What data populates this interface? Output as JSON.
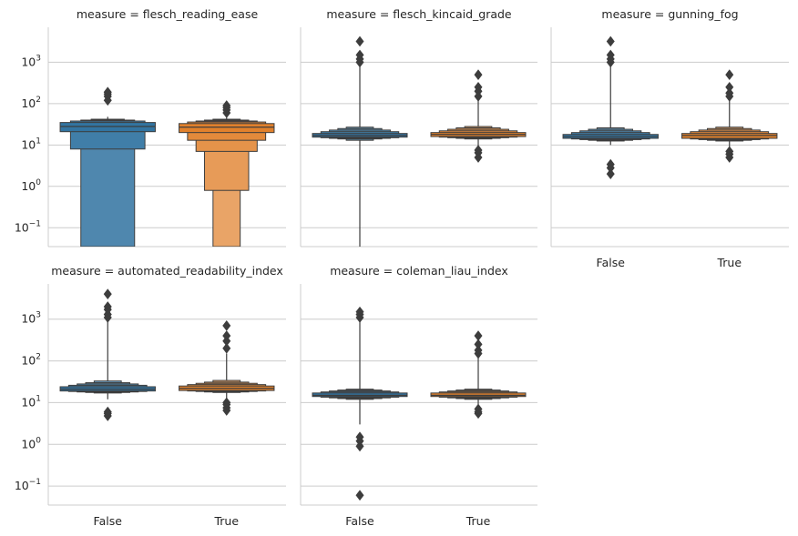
{
  "chart_data": {
    "type": "boxen",
    "y_scale": "log",
    "ylim": [
      0.035,
      7000
    ],
    "y_ticks": [
      {
        "value": 0.1,
        "base": "10",
        "exp": "−1"
      },
      {
        "value": 1,
        "base": "10",
        "exp": "0"
      },
      {
        "value": 10,
        "base": "10",
        "exp": "1"
      },
      {
        "value": 100,
        "base": "10",
        "exp": "2"
      },
      {
        "value": 1000,
        "base": "10",
        "exp": "3"
      }
    ],
    "grid": true,
    "legend": "none",
    "categories": [
      "False",
      "True"
    ],
    "colors": {
      "False": "#3274a1",
      "True": "#e1812c"
    },
    "facets": [
      {
        "title": "measure = flesch_reading_ease",
        "boxes": {
          "False": {
            "levels": [
              [
                21,
                35
              ],
              [
                8,
                38
              ],
              [
                0.001,
                40
              ],
              [
                0.001,
                42
              ]
            ],
            "median": 28,
            "whisker_high": 48,
            "outliers": [
              120,
              150,
              170,
              190
            ]
          },
          "True": {
            "levels": [
              [
                20,
                33
              ],
              [
                13,
                36
              ],
              [
                7,
                38
              ],
              [
                0.8,
                40
              ],
              [
                0.001,
                42
              ]
            ],
            "median": 27,
            "whisker_high": 46,
            "outliers": [
              60,
              70,
              80,
              90
            ]
          }
        }
      },
      {
        "title": "measure = flesch_kincaid_grade",
        "boxes": {
          "False": {
            "levels": [
              [
                15.5,
                19
              ],
              [
                15,
                21
              ],
              [
                14.5,
                23
              ],
              [
                14,
                25
              ],
              [
                13,
                27
              ]
            ],
            "median": 17,
            "whisker_low": 0.001,
            "whisker_high": 900,
            "outliers": [
              1000,
              1200,
              1500,
              3200
            ]
          },
          "True": {
            "levels": [
              [
                16,
                20
              ],
              [
                15.5,
                22
              ],
              [
                15,
                24
              ],
              [
                14.5,
                26
              ],
              [
                14,
                28
              ]
            ],
            "median": 18,
            "whisker_low": 9,
            "whisker_high": 120,
            "outliers": [
              5,
              6.5,
              7.5,
              150,
              200,
              250,
              500
            ]
          }
        }
      },
      {
        "title": "measure = gunning_fog",
        "boxes": {
          "False": {
            "levels": [
              [
                14.5,
                18
              ],
              [
                14,
                20
              ],
              [
                13.5,
                22
              ],
              [
                13,
                24
              ],
              [
                12.5,
                26
              ]
            ],
            "median": 16,
            "whisker_low": 10,
            "whisker_high": 900,
            "outliers": [
              2,
              2.8,
              3.4,
              1000,
              1200,
              1500,
              3200
            ]
          },
          "True": {
            "levels": [
              [
                14.5,
                19
              ],
              [
                14,
                21
              ],
              [
                13.5,
                23
              ],
              [
                13,
                25
              ],
              [
                12.5,
                27
              ]
            ],
            "median": 17,
            "whisker_low": 9,
            "whisker_high": 120,
            "outliers": [
              5,
              6,
              7,
              150,
              180,
              250,
              500
            ]
          }
        }
      },
      {
        "title": "measure = automated_readability_index",
        "boxes": {
          "False": {
            "levels": [
              [
                19,
                24
              ],
              [
                18.5,
                26
              ],
              [
                18,
                28
              ],
              [
                17.5,
                30
              ],
              [
                17,
                33
              ]
            ],
            "median": 21,
            "whisker_low": 12,
            "whisker_high": 900,
            "outliers": [
              4.8,
              5.5,
              6,
              1100,
              1300,
              1700,
              2000,
              4000
            ]
          },
          "True": {
            "levels": [
              [
                19.5,
                25
              ],
              [
                19,
                27
              ],
              [
                18.5,
                29
              ],
              [
                18,
                31
              ],
              [
                17.5,
                34
              ]
            ],
            "median": 22,
            "whisker_low": 12,
            "whisker_high": 150,
            "outliers": [
              6.5,
              7.5,
              9,
              10,
              200,
              300,
              400,
              700
            ]
          }
        }
      },
      {
        "title": "measure = coleman_liau_index",
        "boxes": {
          "False": {
            "levels": [
              [
                14,
                17
              ],
              [
                13.5,
                18
              ],
              [
                13,
                19
              ],
              [
                12.5,
                20
              ],
              [
                12,
                21
              ]
            ],
            "median": 15,
            "whisker_low": 3,
            "whisker_high": 900,
            "outliers": [
              0.06,
              0.9,
              1.2,
              1.5,
              1100,
              1300,
              1500
            ]
          },
          "True": {
            "levels": [
              [
                14,
                17
              ],
              [
                13.5,
                18
              ],
              [
                13,
                19
              ],
              [
                12.5,
                20
              ],
              [
                12,
                21
              ]
            ],
            "median": 15,
            "whisker_low": 9,
            "whisker_high": 120,
            "outliers": [
              5.5,
              6,
              7,
              150,
              180,
              250,
              400
            ]
          }
        }
      }
    ]
  }
}
